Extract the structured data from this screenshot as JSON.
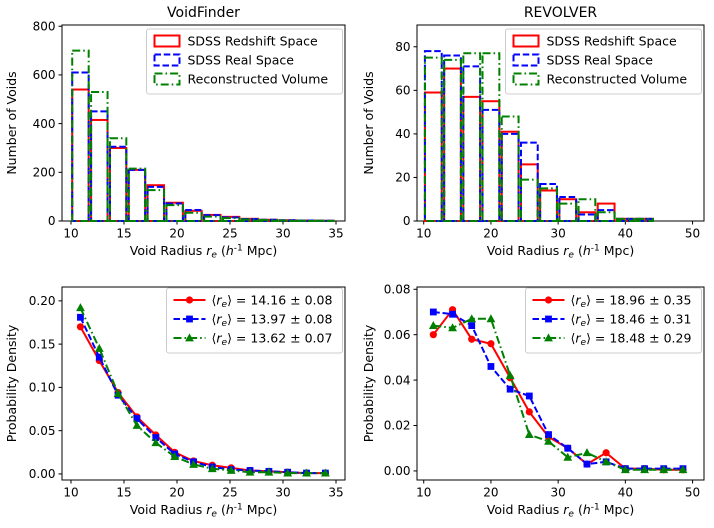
{
  "figure": {
    "background": "#ffffff",
    "text_color": "#000000",
    "accent_colors": {
      "sdss_redshift_space": "#ff0000",
      "sdss_real_space": "#0000ff",
      "reconstructed_volume": "#008000"
    }
  },
  "chart_data": [
    {
      "id": "voidfinder_hist",
      "type": "bar",
      "style": "outlined-histogram",
      "title": "VoidFinder",
      "xlabel": "Void Radius r_e (h^-1 Mpc)",
      "ylabel": "Number of Voids",
      "xlim": [
        9.15,
        35.85
      ],
      "ylim": [
        0,
        805
      ],
      "grid": false,
      "legend_position": "upper right",
      "legend_style": "patch",
      "xticks": [
        10,
        15,
        20,
        25,
        30,
        35
      ],
      "xtick_labels": [
        "10",
        "15",
        "20",
        "25",
        "30",
        "35"
      ],
      "yticks": [
        0,
        200,
        400,
        600,
        800
      ],
      "ytick_labels": [
        "0",
        "200",
        "400",
        "600",
        "800"
      ],
      "bin_edges": [
        10.0,
        11.78,
        13.56,
        15.33,
        17.11,
        18.89,
        20.67,
        22.44,
        24.22,
        26.0,
        27.78,
        29.56,
        31.33,
        33.11,
        34.89
      ],
      "series": [
        {
          "name": "SDSS Redshift Space",
          "label": "SDSS Redshift Space",
          "color": "#ff0000",
          "linestyle": "solid",
          "marker": null,
          "values": [
            540,
            415,
            300,
            210,
            147,
            75,
            42,
            25,
            17,
            9,
            5,
            3,
            2,
            1
          ]
        },
        {
          "name": "SDSS Real Space",
          "label": "SDSS Real Space",
          "color": "#0000ff",
          "linestyle": "dashed",
          "marker": null,
          "values": [
            610,
            450,
            305,
            210,
            140,
            72,
            45,
            24,
            15,
            8,
            5,
            3,
            2,
            1
          ]
        },
        {
          "name": "Reconstructed Volume",
          "label": "Reconstructed Volume",
          "color": "#008000",
          "linestyle": "dashdot",
          "marker": null,
          "values": [
            700,
            530,
            340,
            215,
            127,
            65,
            34,
            18,
            12,
            6,
            4,
            2,
            1,
            1
          ]
        }
      ]
    },
    {
      "id": "revolver_hist",
      "type": "bar",
      "style": "outlined-histogram",
      "title": "REVOLVER",
      "xlabel": "Void Radius r_e (h^-1 Mpc)",
      "ylabel": "Number of Voids",
      "xlim": [
        9.0,
        51.7
      ],
      "ylim": [
        0,
        90
      ],
      "grid": false,
      "legend_position": "upper right",
      "legend_style": "patch",
      "xticks": [
        10,
        20,
        30,
        40,
        50
      ],
      "xtick_labels": [
        "10",
        "20",
        "30",
        "40",
        "50"
      ],
      "yticks": [
        0,
        20,
        40,
        60,
        80
      ],
      "ytick_labels": [
        "0",
        "20",
        "40",
        "60",
        "80"
      ],
      "bin_edges": [
        10.0,
        12.86,
        15.71,
        18.57,
        21.43,
        24.29,
        27.14,
        30.0,
        32.86,
        35.71,
        38.57,
        41.43,
        44.29
      ],
      "series": [
        {
          "name": "SDSS Redshift Space",
          "label": "SDSS Redshift Space",
          "color": "#ff0000",
          "linestyle": "solid",
          "marker": null,
          "values": [
            59,
            70,
            57,
            55,
            41,
            26,
            14,
            10,
            4,
            8,
            1,
            1
          ]
        },
        {
          "name": "SDSS Real Space",
          "label": "SDSS Real Space",
          "color": "#0000ff",
          "linestyle": "dashed",
          "marker": null,
          "values": [
            78,
            76,
            71,
            51,
            40,
            36,
            17,
            11,
            3,
            5,
            1,
            1
          ]
        },
        {
          "name": "Reconstructed Volume",
          "label": "Reconstructed Volume",
          "color": "#008000",
          "linestyle": "dashdot",
          "marker": null,
          "values": [
            75,
            74,
            77,
            77,
            48,
            19,
            15,
            8,
            10,
            4,
            1,
            1
          ]
        }
      ]
    },
    {
      "id": "voidfinder_pdf",
      "type": "line",
      "title": "",
      "xlabel": "Void Radius r_e (h^-1 Mpc)",
      "ylabel": "Probability Density",
      "xlim": [
        9.15,
        35.85
      ],
      "ylim": [
        -0.007,
        0.216
      ],
      "grid": false,
      "legend_position": "upper right",
      "legend_style": "line",
      "xticks": [
        10,
        15,
        20,
        25,
        30,
        35
      ],
      "xtick_labels": [
        "10",
        "15",
        "20",
        "25",
        "30",
        "35"
      ],
      "yticks": [
        0,
        0.05,
        0.1,
        0.15,
        0.2
      ],
      "ytick_labels": [
        "0.00",
        "0.05",
        "0.10",
        "0.15",
        "0.20"
      ],
      "x": [
        10.89,
        12.67,
        14.44,
        16.22,
        18.0,
        19.78,
        21.56,
        23.33,
        25.11,
        26.89,
        28.67,
        30.44,
        32.22,
        34.0
      ],
      "series": [
        {
          "name": "SDSS Redshift Space",
          "label": "⟨r_e⟩ = 14.16 ± 0.08",
          "mean_re": 14.16,
          "mean_re_error": 0.08,
          "color": "#ff0000",
          "linestyle": "solid",
          "marker": "circle",
          "values": [
            0.17,
            0.131,
            0.094,
            0.066,
            0.045,
            0.025,
            0.015,
            0.01,
            0.007,
            0.004,
            0.003,
            0.002,
            0.001,
            0.001
          ]
        },
        {
          "name": "SDSS Real Space",
          "label": "⟨r_e⟩ = 13.97 ± 0.08",
          "mean_re": 13.97,
          "mean_re_error": 0.08,
          "color": "#0000ff",
          "linestyle": "dashed",
          "marker": "square",
          "values": [
            0.181,
            0.135,
            0.091,
            0.064,
            0.042,
            0.023,
            0.014,
            0.008,
            0.005,
            0.004,
            0.003,
            0.002,
            0.001,
            0.001
          ]
        },
        {
          "name": "Reconstructed Volume",
          "label": "⟨r_e⟩ = 13.62 ± 0.07",
          "mean_re": 13.62,
          "mean_re_error": 0.07,
          "color": "#008000",
          "linestyle": "dashdot",
          "marker": "triangle",
          "values": [
            0.192,
            0.145,
            0.093,
            0.056,
            0.036,
            0.02,
            0.011,
            0.006,
            0.004,
            0.002,
            0.002,
            0.001,
            0.001,
            0.001
          ]
        }
      ]
    },
    {
      "id": "revolver_pdf",
      "type": "line",
      "title": "",
      "xlabel": "Void Radius r_e (h^-1 Mpc)",
      "ylabel": "Probability Density",
      "xlim": [
        9.0,
        51.7
      ],
      "ylim": [
        -0.004,
        0.081
      ],
      "grid": false,
      "legend_position": "upper right",
      "legend_style": "line",
      "xticks": [
        10,
        20,
        30,
        40,
        50
      ],
      "xtick_labels": [
        "10",
        "20",
        "30",
        "40",
        "50"
      ],
      "yticks": [
        0,
        0.02,
        0.04,
        0.06,
        0.08
      ],
      "ytick_labels": [
        "0.00",
        "0.02",
        "0.04",
        "0.06",
        "0.08"
      ],
      "x": [
        11.43,
        14.29,
        17.14,
        20.0,
        22.86,
        25.71,
        28.57,
        31.43,
        34.29,
        37.14,
        40.0,
        42.86,
        45.71,
        48.57
      ],
      "series": [
        {
          "name": "SDSS Redshift Space",
          "label": "⟨r_e⟩ = 18.96 ± 0.35",
          "mean_re": 18.96,
          "mean_re_error": 0.35,
          "color": "#ff0000",
          "linestyle": "solid",
          "marker": "circle",
          "values": [
            0.06,
            0.071,
            0.058,
            0.056,
            0.041,
            0.026,
            0.015,
            0.01,
            0.003,
            0.008,
            0.001,
            0.001,
            0.0005,
            0.0005
          ]
        },
        {
          "name": "SDSS Real Space",
          "label": "⟨r_e⟩ = 18.46 ± 0.31",
          "mean_re": 18.46,
          "mean_re_error": 0.31,
          "color": "#0000ff",
          "linestyle": "dashed",
          "marker": "square",
          "values": [
            0.07,
            0.069,
            0.064,
            0.046,
            0.036,
            0.033,
            0.016,
            0.01,
            0.003,
            0.004,
            0.001,
            0.001,
            0.001,
            0.001
          ]
        },
        {
          "name": "Reconstructed Volume",
          "label": "⟨r_e⟩ = 18.48 ± 0.29",
          "mean_re": 18.48,
          "mean_re_error": 0.29,
          "color": "#008000",
          "linestyle": "dashdot",
          "marker": "triangle",
          "values": [
            0.064,
            0.063,
            0.067,
            0.067,
            0.042,
            0.016,
            0.013,
            0.006,
            0.008,
            0.004,
            0.0005,
            0.0005,
            0.0005,
            0.0005
          ]
        }
      ]
    }
  ]
}
